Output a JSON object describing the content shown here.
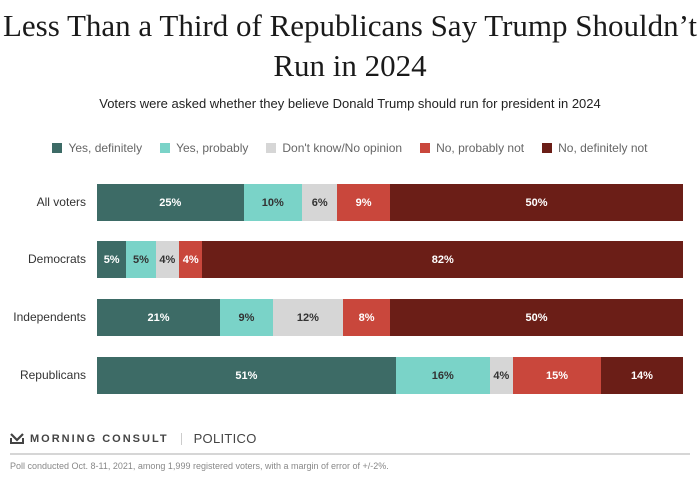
{
  "chart_data": {
    "type": "bar",
    "orientation": "horizontal",
    "stacked": true,
    "title": "Less Than a Third of Republicans Say Trump Shouldn’t Run in 2024",
    "subtitle": "Voters were asked whether they believe Donald Trump should run for president in 2024",
    "xlabel": "",
    "ylabel": "",
    "xlim": [
      0,
      100
    ],
    "grid": false,
    "legend_position": "top",
    "categories": [
      "All voters",
      "Democrats",
      "Independents",
      "Republicans"
    ],
    "series": [
      {
        "name": "Yes, definitely",
        "color": "#3d6b66",
        "text_color": "#ffffff",
        "values": [
          25,
          5,
          21,
          51
        ]
      },
      {
        "name": "Yes, probably",
        "color": "#7ad3c8",
        "text_color": "#333333",
        "values": [
          10,
          5,
          9,
          16
        ]
      },
      {
        "name": "Don't know/No opinion",
        "color": "#d6d6d6",
        "text_color": "#333333",
        "values": [
          6,
          4,
          12,
          4
        ]
      },
      {
        "name": "No, probably not",
        "color": "#c9473c",
        "text_color": "#ffffff",
        "values": [
          9,
          4,
          8,
          15
        ]
      },
      {
        "name": "No, definitely not",
        "color": "#6b1e17",
        "text_color": "#ffffff",
        "values": [
          50,
          82,
          50,
          14
        ]
      }
    ],
    "value_suffix": "%"
  },
  "footer": {
    "brand1": "MORNING CONSULT",
    "brand2": "POLITICO",
    "note": "Poll conducted Oct. 8-11, 2021, among 1,999 registered voters, with a margin of error of +/-2%."
  }
}
